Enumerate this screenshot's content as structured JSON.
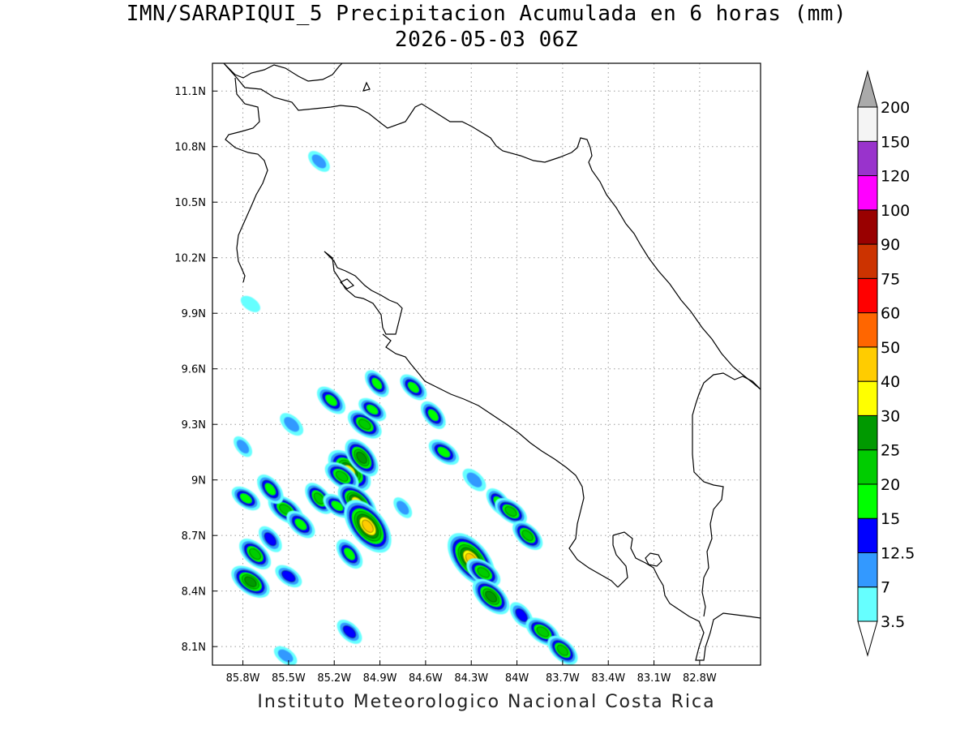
{
  "title": "IMN/SARAPIQUI_5 Precipitacion Acumulada en 6 horas (mm)",
  "subtitle": "2026-05-03 06Z",
  "credit": "Instituto Meteorologico Nacional Costa Rica",
  "map": {
    "lon_range": [
      -86.0,
      -82.4
    ],
    "lat_range": [
      8.0,
      11.25
    ],
    "lon_ticks": [
      "85.8W",
      "85.5W",
      "85.2W",
      "84.9W",
      "84.6W",
      "84.3W",
      "84W",
      "83.7W",
      "83.4W",
      "83.1W",
      "82.8W"
    ],
    "lon_tick_values": [
      -85.8,
      -85.5,
      -85.2,
      -84.9,
      -84.6,
      -84.3,
      -84.0,
      -83.7,
      -83.4,
      -83.1,
      -82.8
    ],
    "lat_ticks": [
      "11.1N",
      "10.8N",
      "10.5N",
      "10.2N",
      "9.9N",
      "9.6N",
      "9.3N",
      "9N",
      "8.7N",
      "8.4N",
      "8.1N"
    ],
    "lat_tick_values": [
      11.1,
      10.8,
      10.5,
      10.2,
      9.9,
      9.6,
      9.3,
      9.0,
      8.7,
      8.4,
      8.1
    ],
    "grid": "dotted",
    "coastline_color": "#000000"
  },
  "legend": {
    "position": "right",
    "levels": [
      "3.5",
      "7",
      "12.5",
      "15",
      "20",
      "25",
      "30",
      "40",
      "50",
      "60",
      "75",
      "90",
      "100",
      "120",
      "150",
      "200"
    ],
    "colors": [
      "#ffffff",
      "#66ffff",
      "#3399ff",
      "#0000ff",
      "#00ff00",
      "#00cc00",
      "#009900",
      "#ffff00",
      "#ffcc00",
      "#ff6600",
      "#ff0000",
      "#cc3300",
      "#990000",
      "#ff00ff",
      "#9933cc",
      "#f4f4f4",
      "#aaaaaa"
    ]
  },
  "precip_cells": [
    {
      "lon": -85.75,
      "lat": 8.45,
      "max": 27
    },
    {
      "lon": -85.72,
      "lat": 8.6,
      "max": 22
    },
    {
      "lon": -85.62,
      "lat": 8.68,
      "max": 14
    },
    {
      "lon": -85.52,
      "lat": 8.84,
      "max": 23
    },
    {
      "lon": -85.42,
      "lat": 8.76,
      "max": 18
    },
    {
      "lon": -85.62,
      "lat": 8.95,
      "max": 18
    },
    {
      "lon": -85.78,
      "lat": 8.9,
      "max": 16
    },
    {
      "lon": -85.48,
      "lat": 9.3,
      "max": 12
    },
    {
      "lon": -85.3,
      "lat": 8.9,
      "max": 20
    },
    {
      "lon": -85.18,
      "lat": 8.86,
      "max": 16
    },
    {
      "lon": -85.1,
      "lat": 9.05,
      "max": 35
    },
    {
      "lon": -85.02,
      "lat": 9.12,
      "max": 27
    },
    {
      "lon": -85.15,
      "lat": 9.02,
      "max": 22
    },
    {
      "lon": -85.05,
      "lat": 8.88,
      "max": 30
    },
    {
      "lon": -84.98,
      "lat": 8.75,
      "max": 45
    },
    {
      "lon": -85.0,
      "lat": 9.3,
      "max": 22
    },
    {
      "lon": -85.22,
      "lat": 9.43,
      "max": 18
    },
    {
      "lon": -84.92,
      "lat": 9.52,
      "max": 15
    },
    {
      "lon": -84.95,
      "lat": 9.38,
      "max": 15
    },
    {
      "lon": -84.68,
      "lat": 9.5,
      "max": 16
    },
    {
      "lon": -84.55,
      "lat": 9.35,
      "max": 16
    },
    {
      "lon": -84.48,
      "lat": 9.15,
      "max": 18
    },
    {
      "lon": -84.28,
      "lat": 9.0,
      "max": 12
    },
    {
      "lon": -84.12,
      "lat": 8.88,
      "max": 16
    },
    {
      "lon": -84.04,
      "lat": 8.83,
      "max": 20
    },
    {
      "lon": -83.93,
      "lat": 8.7,
      "max": 20
    },
    {
      "lon": -84.3,
      "lat": 8.57,
      "max": 45
    },
    {
      "lon": -84.22,
      "lat": 8.5,
      "max": 22
    },
    {
      "lon": -84.17,
      "lat": 8.37,
      "max": 28
    },
    {
      "lon": -83.97,
      "lat": 8.27,
      "max": 14
    },
    {
      "lon": -83.83,
      "lat": 8.18,
      "max": 22
    },
    {
      "lon": -83.7,
      "lat": 8.08,
      "max": 20
    },
    {
      "lon": -85.1,
      "lat": 8.6,
      "max": 18
    },
    {
      "lon": -85.5,
      "lat": 8.48,
      "max": 14
    },
    {
      "lon": -85.1,
      "lat": 8.18,
      "max": 14
    },
    {
      "lon": -84.75,
      "lat": 8.85,
      "max": 8
    },
    {
      "lon": -85.75,
      "lat": 9.95,
      "max": 6
    },
    {
      "lon": -85.3,
      "lat": 10.72,
      "max": 10
    },
    {
      "lon": -85.8,
      "lat": 9.18,
      "max": 8
    },
    {
      "lon": -85.52,
      "lat": 8.05,
      "max": 10
    }
  ]
}
